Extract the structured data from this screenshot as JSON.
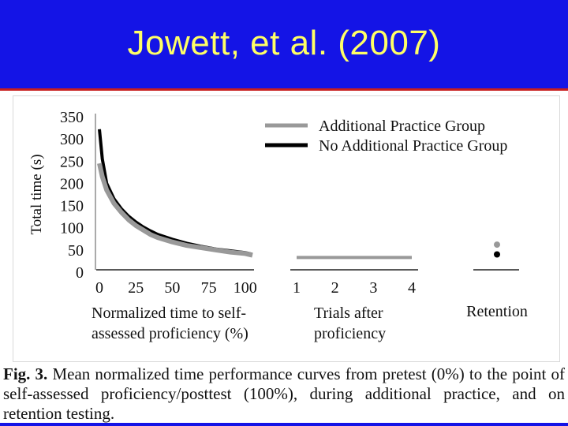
{
  "slide": {
    "title": "Jowett, et al. (2007)"
  },
  "caption": {
    "label": "Fig. 3.",
    "text": "Mean normalized time performance curves from pretest (0%) to the point of self-assessed proficiency/posttest (100%), during additional practice, and on retention testing."
  },
  "colors": {
    "title_bar": "#1414e6",
    "title_text": "#ffff66",
    "additional_practice": "#999999",
    "no_additional_practice": "#000000"
  },
  "chart_data": {
    "type": "line",
    "ylabel": "Total time (s)",
    "ylim": [
      0,
      350
    ],
    "yticks": [
      "350",
      "300",
      "250",
      "200",
      "150",
      "100",
      "50",
      "0"
    ],
    "legend": {
      "placement": "top-right",
      "entries": [
        "Additional Practice Group",
        "No Additional Practice Group"
      ]
    },
    "panels": [
      {
        "name": "proficiency",
        "xlabel": "Normalized time to self-assessed proficiency (%)",
        "xlabel_lines": [
          "Normalized time to self-",
          "assessed proficiency (%)"
        ],
        "xticks": [
          "0",
          "25",
          "50",
          "75",
          "100"
        ],
        "xlim": [
          0,
          105
        ],
        "series": [
          {
            "name": "Additional Practice Group",
            "color": "#999999",
            "x": [
              0,
              2,
              5,
              10,
              15,
              20,
              25,
              30,
              35,
              40,
              50,
              60,
              70,
              80,
              90,
              100,
              105
            ],
            "y": [
              245,
              215,
              185,
              155,
              135,
              118,
              105,
              95,
              85,
              78,
              68,
              60,
              55,
              50,
              45,
              42,
              38
            ]
          },
          {
            "name": "No Additional Practice Group",
            "color": "#000000",
            "x": [
              0,
              2,
              5,
              10,
              15,
              20,
              25,
              30,
              35,
              40,
              50,
              60,
              70,
              80,
              90,
              100,
              105
            ],
            "y": [
              322,
              255,
              200,
              165,
              143,
              126,
              113,
              102,
              93,
              85,
              74,
              65,
              58,
              52,
              48,
              44,
              40
            ]
          }
        ]
      },
      {
        "name": "additional-practice",
        "xlabel": "Trials after proficiency",
        "xlabel_lines": [
          "Trials after",
          "proficiency"
        ],
        "xticks": [
          "1",
          "2",
          "3",
          "4"
        ],
        "xlim": [
          1,
          4
        ],
        "series": [
          {
            "name": "Additional Practice Group",
            "color": "#999999",
            "x": [
              1,
              2,
              3,
              4
            ],
            "y": [
              33,
              33,
              33,
              33
            ]
          }
        ]
      },
      {
        "name": "retention",
        "xlabel": "Retention",
        "series": [
          {
            "name": "Additional Practice Group",
            "color": "#999999",
            "y": 62
          },
          {
            "name": "No Additional Practice Group",
            "color": "#000000",
            "y": 40
          }
        ]
      }
    ]
  }
}
